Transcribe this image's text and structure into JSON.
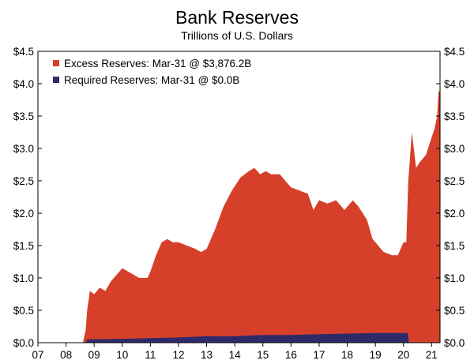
{
  "chart_data": {
    "type": "area",
    "title": "Bank Reserves",
    "subtitle": "Trillions of U.S. Dollars",
    "xlabel": "",
    "ylabel": "",
    "xlim": [
      2007.0,
      2021.3
    ],
    "ylim": [
      0,
      4.5
    ],
    "x_ticks": [
      {
        "value": 2007,
        "label": "07"
      },
      {
        "value": 2008,
        "label": "08"
      },
      {
        "value": 2009,
        "label": "09"
      },
      {
        "value": 2010,
        "label": "10"
      },
      {
        "value": 2011,
        "label": "11"
      },
      {
        "value": 2012,
        "label": "12"
      },
      {
        "value": 2013,
        "label": "13"
      },
      {
        "value": 2014,
        "label": "14"
      },
      {
        "value": 2015,
        "label": "15"
      },
      {
        "value": 2016,
        "label": "16"
      },
      {
        "value": 2017,
        "label": "17"
      },
      {
        "value": 2018,
        "label": "18"
      },
      {
        "value": 2019,
        "label": "19"
      },
      {
        "value": 2020,
        "label": "20"
      },
      {
        "value": 2021,
        "label": "21"
      }
    ],
    "y_ticks": [
      {
        "value": 0.0,
        "label": "$0.0"
      },
      {
        "value": 0.5,
        "label": "$0.5"
      },
      {
        "value": 1.0,
        "label": "$1.0"
      },
      {
        "value": 1.5,
        "label": "$1.5"
      },
      {
        "value": 2.0,
        "label": "$2.0"
      },
      {
        "value": 2.5,
        "label": "$2.5"
      },
      {
        "value": 3.0,
        "label": "$3.0"
      },
      {
        "value": 3.5,
        "label": "$3.5"
      },
      {
        "value": 4.0,
        "label": "$4.0"
      },
      {
        "value": 4.5,
        "label": "$4.5"
      }
    ],
    "legend_position": "top-left",
    "series": [
      {
        "name": "Excess Reserves: Mar-31 @ $3,876.2B",
        "color": "#d6402a",
        "points": [
          [
            2007.0,
            0.0
          ],
          [
            2008.6,
            0.0
          ],
          [
            2008.7,
            0.2
          ],
          [
            2008.75,
            0.5
          ],
          [
            2008.85,
            0.8
          ],
          [
            2009.0,
            0.75
          ],
          [
            2009.2,
            0.85
          ],
          [
            2009.4,
            0.8
          ],
          [
            2009.6,
            0.95
          ],
          [
            2009.8,
            1.05
          ],
          [
            2010.0,
            1.15
          ],
          [
            2010.2,
            1.1
          ],
          [
            2010.4,
            1.05
          ],
          [
            2010.6,
            1.0
          ],
          [
            2010.9,
            1.0
          ],
          [
            2011.0,
            1.1
          ],
          [
            2011.2,
            1.35
          ],
          [
            2011.4,
            1.55
          ],
          [
            2011.6,
            1.6
          ],
          [
            2011.8,
            1.55
          ],
          [
            2012.0,
            1.55
          ],
          [
            2012.3,
            1.5
          ],
          [
            2012.6,
            1.45
          ],
          [
            2012.8,
            1.4
          ],
          [
            2013.0,
            1.45
          ],
          [
            2013.3,
            1.75
          ],
          [
            2013.6,
            2.1
          ],
          [
            2013.9,
            2.35
          ],
          [
            2014.2,
            2.55
          ],
          [
            2014.5,
            2.65
          ],
          [
            2014.7,
            2.7
          ],
          [
            2014.9,
            2.6
          ],
          [
            2015.1,
            2.65
          ],
          [
            2015.3,
            2.6
          ],
          [
            2015.6,
            2.6
          ],
          [
            2015.8,
            2.5
          ],
          [
            2016.0,
            2.4
          ],
          [
            2016.3,
            2.35
          ],
          [
            2016.6,
            2.3
          ],
          [
            2016.8,
            2.05
          ],
          [
            2017.0,
            2.2
          ],
          [
            2017.3,
            2.15
          ],
          [
            2017.6,
            2.2
          ],
          [
            2017.9,
            2.05
          ],
          [
            2018.2,
            2.2
          ],
          [
            2018.4,
            2.1
          ],
          [
            2018.7,
            1.9
          ],
          [
            2018.9,
            1.6
          ],
          [
            2019.1,
            1.5
          ],
          [
            2019.3,
            1.4
          ],
          [
            2019.6,
            1.35
          ],
          [
            2019.8,
            1.35
          ],
          [
            2020.0,
            1.55
          ],
          [
            2020.1,
            1.55
          ],
          [
            2020.17,
            2.5
          ],
          [
            2020.3,
            3.25
          ],
          [
            2020.45,
            2.7
          ],
          [
            2020.6,
            2.8
          ],
          [
            2020.8,
            2.9
          ],
          [
            2020.95,
            3.1
          ],
          [
            2021.1,
            3.3
          ],
          [
            2021.2,
            3.5
          ],
          [
            2021.25,
            3.88
          ],
          [
            2021.3,
            3.88
          ]
        ]
      },
      {
        "name": "Required Reserves: Mar-31 @ $0.0B",
        "color": "#2e2a6a",
        "points": [
          [
            2007.0,
            0.0
          ],
          [
            2008.7,
            0.0
          ],
          [
            2008.75,
            0.05
          ],
          [
            2010.0,
            0.06
          ],
          [
            2011.0,
            0.07
          ],
          [
            2012.0,
            0.08
          ],
          [
            2013.0,
            0.1
          ],
          [
            2014.0,
            0.1
          ],
          [
            2015.0,
            0.12
          ],
          [
            2016.0,
            0.12
          ],
          [
            2017.0,
            0.13
          ],
          [
            2018.0,
            0.14
          ],
          [
            2019.0,
            0.15
          ],
          [
            2020.15,
            0.15
          ],
          [
            2020.2,
            0.0
          ],
          [
            2021.3,
            0.0
          ]
        ]
      }
    ]
  }
}
